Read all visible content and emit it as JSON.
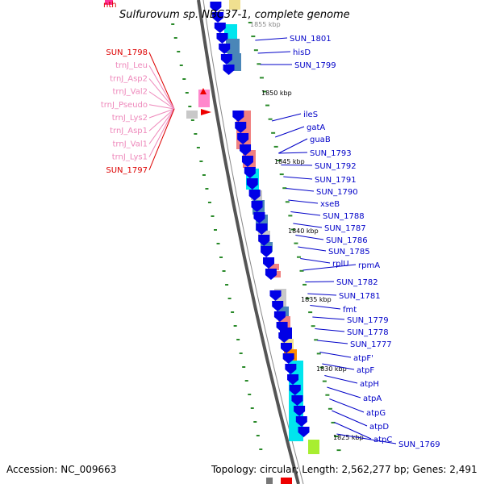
{
  "title": "Sulfurovum sp. NBC37-1, complete genome",
  "accession_text": "Accession: NC_009663",
  "topology_text": "Topology: circular; Length: 2,562,277 bp; Genes: 2,491",
  "colors": {
    "backbone": "#555555",
    "arrow": "#0000e6",
    "leader_right": "#0000c8",
    "leader_red": "#dd0000",
    "leader_pink": "#ee88bb",
    "tick": "#2a8a2a",
    "cyan": "#00e5ee",
    "steel": "#4a86b8",
    "salmon": "#f08080",
    "grey": "#c8c8c8",
    "gold": "#f0e090",
    "orange": "#ff8c00",
    "lime": "#a8ee30",
    "pink": "#ff88cc",
    "red": "#ee0000"
  },
  "kbp_markers": [
    "1855 kbp",
    "1850 kbp",
    "1845 kbp",
    "1840 kbp",
    "1835 kbp",
    "1830 kbp",
    "1825 kbp"
  ],
  "left_labels": {
    "top": "nth",
    "items": [
      {
        "label": "SUN_1798",
        "kind": "red"
      },
      {
        "label": "trnJ_Leu",
        "kind": "pink"
      },
      {
        "label": "trnJ_Asp2",
        "kind": "pink"
      },
      {
        "label": "trnJ_Val2",
        "kind": "pink"
      },
      {
        "label": "trnJ_Pseudo",
        "kind": "pink"
      },
      {
        "label": "trnJ_Lys2",
        "kind": "pink"
      },
      {
        "label": "trnJ_Asp1",
        "kind": "pink"
      },
      {
        "label": "trnJ_Val1",
        "kind": "pink"
      },
      {
        "label": "trnJ_Lys1",
        "kind": "pink"
      },
      {
        "label": "SUN_1797",
        "kind": "red"
      }
    ]
  },
  "right_labels": [
    "SUN_1801",
    "hisD",
    "SUN_1799",
    "ileS",
    "gatA",
    "guaB",
    "SUN_1793",
    "SUN_1792",
    "SUN_1791",
    "SUN_1790",
    "xseB",
    "SUN_1788",
    "SUN_1787",
    "SUN_1786",
    "SUN_1785",
    "rplU",
    "rpmA",
    "SUN_1782",
    "SUN_1781",
    "fmt",
    "SUN_1779",
    "SUN_1778",
    "SUN_1777",
    "atpF'",
    "atpF",
    "atpH",
    "atpA",
    "atpG",
    "atpD",
    "atpC",
    "SUN_1769"
  ]
}
